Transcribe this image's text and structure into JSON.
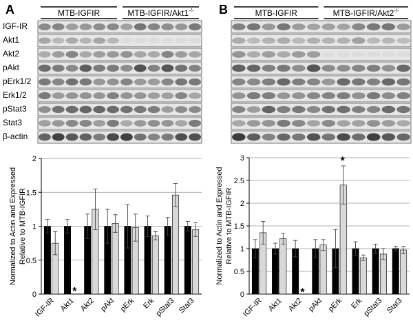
{
  "figure": {
    "panels": [
      {
        "label": "A",
        "groups": [
          {
            "text": "MTB-IGFIR"
          },
          {
            "text": "MTB-IGFIR/Akt1",
            "sup": "-/-"
          }
        ]
      },
      {
        "label": "B",
        "groups": [
          {
            "text": "MTB-IGFIR"
          },
          {
            "text": "MTB-IGFIR/Akt2",
            "sup": "-/-"
          }
        ]
      }
    ],
    "rows": [
      "IGF-IR",
      "Akt1",
      "Akt2",
      "pAkt",
      "pErk1/2",
      "Erk1/2",
      "pStat3",
      "Stat3",
      "β-actin"
    ]
  },
  "chart_data": [
    {
      "type": "bar",
      "ylabel": [
        "Normalized to Actin and Expressed",
        "Relative to MTB-IGFIR"
      ],
      "categories": [
        "IGF-IR",
        "Akt1",
        "Akt2",
        "pAkt",
        "pErk",
        "Erk",
        "pStat3",
        "Stat3"
      ],
      "series": [
        {
          "color": "#000000",
          "values": [
            1,
            1,
            1,
            1,
            1,
            1,
            1,
            1
          ],
          "errors": [
            0.1,
            0.1,
            0.18,
            0.25,
            0.32,
            0.15,
            0.13,
            0.07
          ]
        },
        {
          "color": "#d9d9d9",
          "values": [
            0.75,
            null,
            1.25,
            1.04,
            0.98,
            0.86,
            1.46,
            0.95
          ],
          "errors": [
            0.17,
            null,
            0.3,
            0.13,
            0.2,
            0.06,
            0.17,
            0.1
          ]
        }
      ],
      "ylim": [
        0,
        2
      ],
      "yticks": [
        0,
        0.5,
        1,
        1.5,
        2
      ],
      "grid": true,
      "annotations": [
        {
          "text": "*",
          "category": 1,
          "y": 0.05
        }
      ]
    },
    {
      "type": "bar",
      "ylabel": [
        "Normalized to Actin and Expressed",
        "Relative to MTB-IGFIR"
      ],
      "categories": [
        "IGF-IR",
        "Akt1",
        "Akt2",
        "pAkt",
        "pErk",
        "Erk",
        "pStat3",
        "Stat3"
      ],
      "series": [
        {
          "color": "#000000",
          "values": [
            1,
            1,
            1,
            1,
            1,
            1,
            1,
            1
          ],
          "errors": [
            0.2,
            0.12,
            0.18,
            0.2,
            0.42,
            0.15,
            0.1,
            0.05
          ]
        },
        {
          "color": "#d9d9d9",
          "values": [
            1.35,
            1.22,
            null,
            1.08,
            2.4,
            0.8,
            0.88,
            0.97
          ],
          "errors": [
            0.25,
            0.12,
            null,
            0.12,
            0.42,
            0.06,
            0.12,
            0.08
          ]
        }
      ],
      "ylim": [
        0,
        3
      ],
      "yticks": [
        0,
        0.5,
        1,
        1.5,
        2,
        2.5,
        3
      ],
      "grid": true,
      "annotations": [
        {
          "text": "*",
          "category": 2,
          "y": 0.05
        },
        {
          "text": "*",
          "category": 4,
          "y": 2.95
        }
      ]
    }
  ]
}
